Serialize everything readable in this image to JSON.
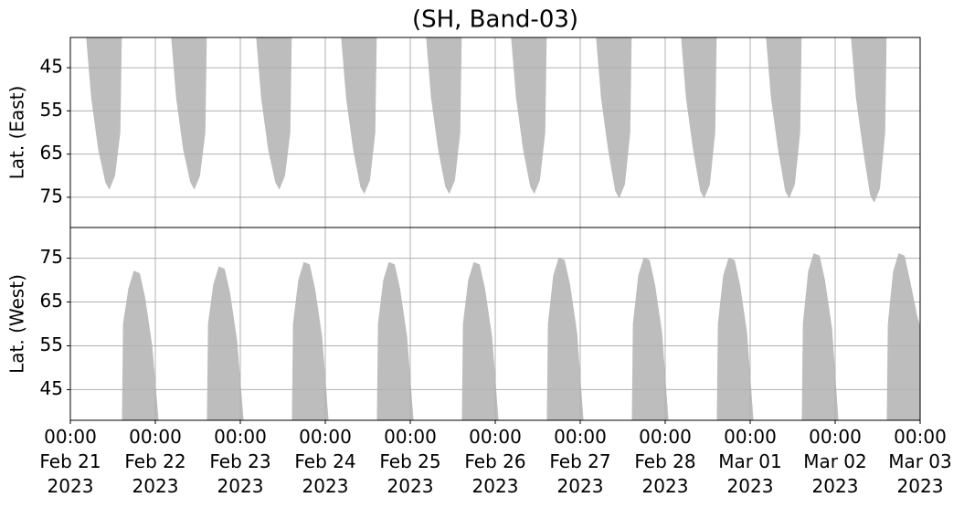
{
  "chart_data": [
    {
      "type": "area",
      "title": "(SH, Band-03)",
      "ylabel": "Lat. (East)",
      "color": "#bdbdbd",
      "grid": true,
      "ylim": [
        82,
        38
      ],
      "yticks": [
        45,
        55,
        65,
        75
      ],
      "xlim": [
        "2023-02-21 00:00",
        "2023-03-03 00:00"
      ],
      "x": [
        "2023-02-21 04:36",
        "2023-02-21 06:00",
        "2023-02-21 08:00",
        "2023-02-21 10:00",
        "2023-02-21 11:00",
        "2023-02-21 12:30",
        "2023-02-21 14:00",
        "2023-02-21 14:24",
        "2023-02-21 20:00",
        "2023-02-22 04:36",
        "2023-02-22 06:00",
        "2023-02-22 08:00",
        "2023-02-22 10:00",
        "2023-02-22 11:00",
        "2023-02-22 12:30",
        "2023-02-22 14:00",
        "2023-02-22 14:24",
        "2023-02-22 20:00",
        "2023-02-23 04:36",
        "2023-02-23 06:00",
        "2023-02-23 08:00",
        "2023-02-23 10:00",
        "2023-02-23 11:00",
        "2023-02-23 12:30",
        "2023-02-23 14:00",
        "2023-02-23 14:24",
        "2023-02-23 20:00",
        "2023-02-24 04:36",
        "2023-02-24 06:00",
        "2023-02-24 08:00",
        "2023-02-24 10:00",
        "2023-02-24 11:00",
        "2023-02-24 12:30",
        "2023-02-24 14:00",
        "2023-02-24 14:24",
        "2023-02-24 20:00",
        "2023-02-25 04:36",
        "2023-02-25 06:00",
        "2023-02-25 08:00",
        "2023-02-25 10:00",
        "2023-02-25 11:00",
        "2023-02-25 12:30",
        "2023-02-25 14:00",
        "2023-02-25 14:24",
        "2023-02-25 20:00",
        "2023-02-26 04:36",
        "2023-02-26 06:00",
        "2023-02-26 08:00",
        "2023-02-26 10:00",
        "2023-02-26 11:00",
        "2023-02-26 12:30",
        "2023-02-26 14:00",
        "2023-02-26 14:24",
        "2023-02-26 20:00",
        "2023-02-27 04:36",
        "2023-02-27 06:00",
        "2023-02-27 08:00",
        "2023-02-27 10:00",
        "2023-02-27 11:00",
        "2023-02-27 12:30",
        "2023-02-27 14:00",
        "2023-02-27 14:24",
        "2023-02-27 20:00",
        "2023-02-28 04:36",
        "2023-02-28 06:00",
        "2023-02-28 08:00",
        "2023-02-28 10:00",
        "2023-02-28 11:00",
        "2023-02-28 12:30",
        "2023-02-28 14:00",
        "2023-02-28 14:24",
        "2023-02-28 20:00",
        "2023-03-01 04:36",
        "2023-03-01 06:00",
        "2023-03-01 08:00",
        "2023-03-01 10:00",
        "2023-03-01 11:00",
        "2023-03-01 12:30",
        "2023-03-01 14:00",
        "2023-03-01 14:24",
        "2023-03-01 20:00",
        "2023-03-02 04:36",
        "2023-03-02 06:00",
        "2023-03-02 08:00",
        "2023-03-02 10:00",
        "2023-03-02 11:00",
        "2023-03-02 12:30",
        "2023-03-02 14:00",
        "2023-03-02 14:24"
      ],
      "values": [
        38,
        52,
        64,
        71.5,
        73,
        70,
        60,
        38,
        null,
        38,
        52,
        64,
        71.5,
        73,
        70,
        60,
        38,
        null,
        38,
        52,
        64,
        71.5,
        73,
        70,
        60,
        38,
        null,
        38,
        52,
        64,
        72.5,
        74,
        71,
        60,
        38,
        null,
        38,
        52,
        64,
        72.5,
        74,
        71,
        60,
        38,
        null,
        38,
        52,
        64,
        72.5,
        74,
        71,
        60,
        38,
        null,
        38,
        52,
        64,
        73.5,
        75,
        72,
        60,
        38,
        null,
        38,
        52,
        64,
        73.5,
        75,
        72,
        60,
        38,
        null,
        38,
        52,
        64,
        73.5,
        75,
        72,
        60,
        38,
        null,
        38,
        52,
        64,
        74.5,
        76,
        73,
        60,
        38
      ]
    },
    {
      "type": "area",
      "ylabel": "Lat. (West)",
      "color": "#bdbdbd",
      "grid": true,
      "ylim": [
        38,
        82
      ],
      "yticks": [
        45,
        55,
        65,
        75
      ],
      "xlim": [
        "2023-02-21 00:00",
        "2023-03-03 00:00"
      ],
      "xticks": [
        {
          "value": "2023-02-21 00:00",
          "label": "00:00\nFeb 21\n2023"
        },
        {
          "value": "2023-02-22 00:00",
          "label": "00:00\nFeb 22\n2023"
        },
        {
          "value": "2023-02-23 00:00",
          "label": "00:00\nFeb 23\n2023"
        },
        {
          "value": "2023-02-24 00:00",
          "label": "00:00\nFeb 24\n2023"
        },
        {
          "value": "2023-02-25 00:00",
          "label": "00:00\nFeb 25\n2023"
        },
        {
          "value": "2023-02-26 00:00",
          "label": "00:00\nFeb 26\n2023"
        },
        {
          "value": "2023-02-27 00:00",
          "label": "00:00\nFeb 27\n2023"
        },
        {
          "value": "2023-02-28 00:00",
          "label": "00:00\nFeb 28\n2023"
        },
        {
          "value": "2023-03-01 00:00",
          "label": "00:00\nMar 01\n2023"
        },
        {
          "value": "2023-03-02 00:00",
          "label": "00:00\nMar 02\n2023"
        },
        {
          "value": "2023-03-03 00:00",
          "label": "00:00\nMar 03\n2023"
        }
      ],
      "x": [
        "2023-02-21 14:42",
        "2023-02-21 15:00",
        "2023-02-21 16:30",
        "2023-02-21 18:00",
        "2023-02-21 19:30",
        "2023-02-21 21:00",
        "2023-02-21 23:00",
        "2023-02-22 00:48",
        "2023-02-22 06:00",
        "2023-02-22 14:42",
        "2023-02-22 15:00",
        "2023-02-22 16:30",
        "2023-02-22 18:00",
        "2023-02-22 19:30",
        "2023-02-22 21:00",
        "2023-02-22 23:00",
        "2023-02-23 00:48",
        "2023-02-23 06:00",
        "2023-02-23 14:42",
        "2023-02-23 15:00",
        "2023-02-23 16:30",
        "2023-02-23 18:00",
        "2023-02-23 19:30",
        "2023-02-23 21:00",
        "2023-02-23 23:00",
        "2023-02-24 00:48",
        "2023-02-24 06:00",
        "2023-02-24 14:42",
        "2023-02-24 15:00",
        "2023-02-24 16:30",
        "2023-02-24 18:00",
        "2023-02-24 19:30",
        "2023-02-24 21:00",
        "2023-02-24 23:00",
        "2023-02-25 00:48",
        "2023-02-25 06:00",
        "2023-02-25 14:42",
        "2023-02-25 15:00",
        "2023-02-25 16:30",
        "2023-02-25 18:00",
        "2023-02-25 19:30",
        "2023-02-25 21:00",
        "2023-02-25 23:00",
        "2023-02-26 00:48",
        "2023-02-26 06:00",
        "2023-02-26 14:42",
        "2023-02-26 15:00",
        "2023-02-26 16:30",
        "2023-02-26 18:00",
        "2023-02-26 19:30",
        "2023-02-26 21:00",
        "2023-02-26 23:00",
        "2023-02-27 00:48",
        "2023-02-27 06:00",
        "2023-02-27 14:42",
        "2023-02-27 15:00",
        "2023-02-27 16:30",
        "2023-02-27 18:00",
        "2023-02-27 19:30",
        "2023-02-27 21:00",
        "2023-02-27 23:00",
        "2023-02-28 00:48",
        "2023-02-28 06:00",
        "2023-02-28 14:42",
        "2023-02-28 15:00",
        "2023-02-28 16:30",
        "2023-02-28 18:00",
        "2023-02-28 19:30",
        "2023-02-28 21:00",
        "2023-02-28 23:00",
        "2023-03-01 00:48",
        "2023-03-01 06:00",
        "2023-03-01 14:42",
        "2023-03-01 15:00",
        "2023-03-01 16:30",
        "2023-03-01 18:00",
        "2023-03-01 19:30",
        "2023-03-01 21:00",
        "2023-03-01 23:00",
        "2023-03-02 00:48",
        "2023-03-02 06:00",
        "2023-03-02 14:42",
        "2023-03-02 15:00",
        "2023-03-02 16:30",
        "2023-03-02 18:00",
        "2023-03-02 19:30",
        "2023-03-02 21:00",
        "2023-03-02 23:00",
        "2023-03-03 00:00"
      ],
      "values": [
        38,
        60,
        68,
        72,
        71.5,
        66,
        55,
        38,
        null,
        38,
        60,
        69,
        73,
        72.5,
        67,
        56,
        38,
        null,
        38,
        60,
        70,
        74,
        73.5,
        68,
        57,
        38,
        null,
        38,
        60,
        70,
        74,
        73.5,
        68,
        57,
        38,
        null,
        38,
        60,
        70,
        74,
        73.5,
        68,
        57,
        38,
        null,
        38,
        60,
        71,
        75,
        74.5,
        69,
        58,
        38,
        null,
        38,
        60,
        71,
        75,
        74.5,
        69,
        58,
        38,
        null,
        38,
        60,
        71,
        75,
        74.5,
        69,
        58,
        38,
        null,
        38,
        60,
        72,
        76,
        75.5,
        70,
        59,
        38,
        null,
        38,
        60,
        72,
        76,
        75.5,
        70,
        62,
        59
      ]
    }
  ]
}
